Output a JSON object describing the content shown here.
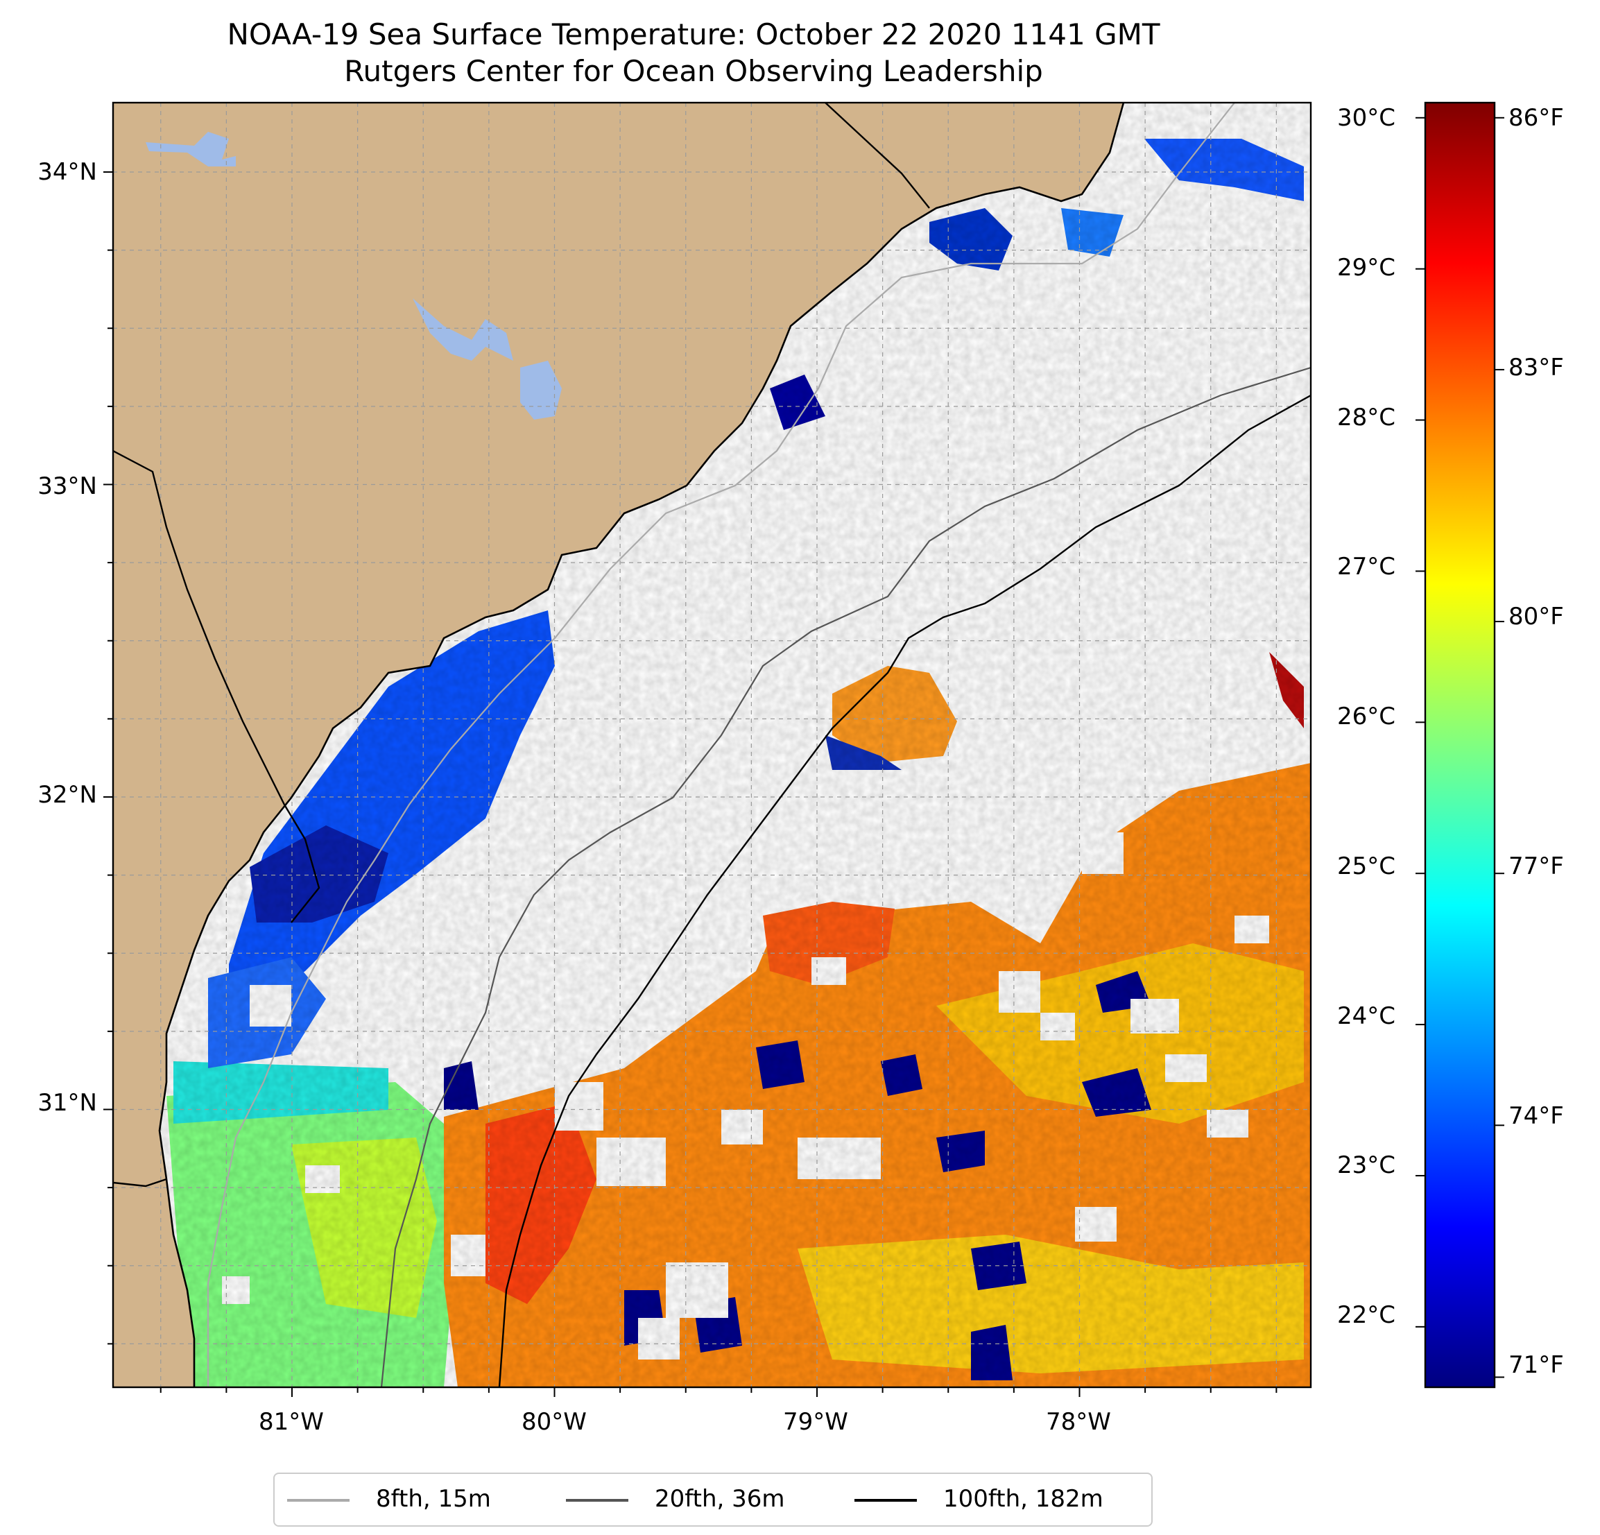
{
  "title": {
    "line1": "NOAA-19 Sea Surface Temperature: October 22 2020 1141 GMT",
    "line2": "Rutgers Center for Ocean Observing Leadership"
  },
  "map": {
    "land_color": "#d2b48c",
    "lake_color": "#9fbbe8",
    "ocean_nodata_color": "#ffffff",
    "lon_range": [
      -81.68,
      -77.12
    ],
    "lat_range": [
      30.26,
      34.22
    ],
    "lat_ticks": [
      "34°N",
      "33°N",
      "32°N",
      "31°N"
    ],
    "lon_ticks": [
      "81°W",
      "80°W",
      "79°W",
      "78°W"
    ],
    "grid": "on"
  },
  "colorbar": {
    "celsius_ticks": [
      "30°C",
      "29°C",
      "28°C",
      "27°C",
      "26°C",
      "25°C",
      "24°C",
      "23°C",
      "22°C"
    ],
    "fahrenheit_ticks": [
      "86°F",
      "83°F",
      "80°F",
      "77°F",
      "74°F",
      "71°F"
    ],
    "range_c": [
      21.6,
      30.1
    ],
    "colormap": [
      "#00007f",
      "#0000ff",
      "#0080ff",
      "#00ffff",
      "#80ff80",
      "#ffff00",
      "#ff8000",
      "#ff0000",
      "#7f0000"
    ]
  },
  "legend": {
    "items": [
      {
        "label": "8fth, 15m",
        "color": "#aaaaaa"
      },
      {
        "label": "20fth, 36m",
        "color": "#555555"
      },
      {
        "label": "100fth, 182m",
        "color": "#000000"
      }
    ]
  }
}
